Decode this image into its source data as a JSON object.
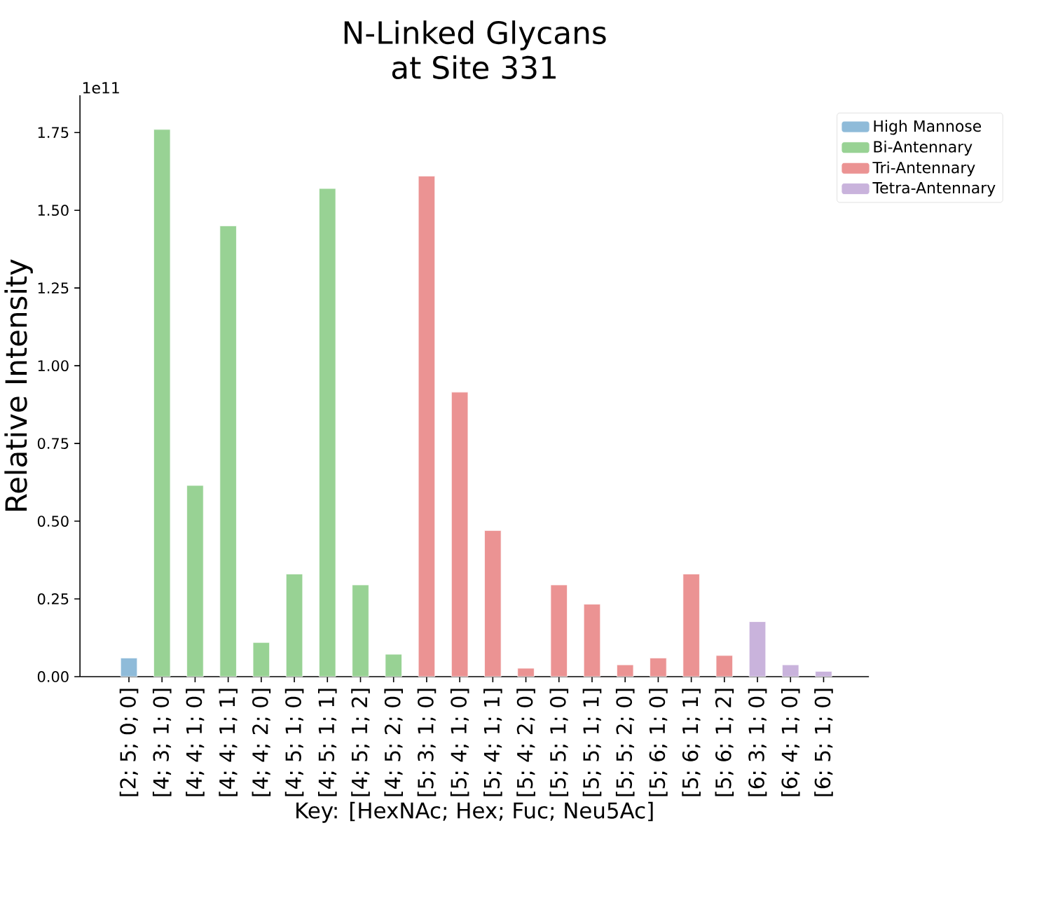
{
  "chart_data": {
    "type": "bar",
    "title": "N-Linked Glycans",
    "subtitle": "at Site 331",
    "xlabel": "Key: [HexNAc; Hex; Fuc; Neu5Ac]",
    "ylabel": "Relative Intensity",
    "annotations": [
      "1e11"
    ],
    "categories": [
      "[2; 5; 0; 0]",
      "[4; 3; 1; 0]",
      "[4; 4; 1; 0]",
      "[4; 4; 1; 1]",
      "[4; 4; 2; 0]",
      "[4; 5; 1; 0]",
      "[4; 5; 1; 1]",
      "[4; 5; 1; 2]",
      "[4; 5; 2; 0]",
      "[5; 3; 1; 0]",
      "[5; 4; 1; 0]",
      "[5; 4; 1; 1]",
      "[5; 4; 2; 0]",
      "[5; 5; 1; 0]",
      "[5; 5; 1; 1]",
      "[5; 5; 2; 0]",
      "[5; 6; 1; 0]",
      "[5; 6; 1; 1]",
      "[5; 6; 1; 2]",
      "[6; 3; 1; 0]",
      "[6; 4; 1; 0]",
      "[6; 5; 1; 0]"
    ],
    "series": [
      {
        "name": "High Mannose",
        "color": "#8fbbd9",
        "values": [
          0.06,
          null,
          null,
          null,
          null,
          null,
          null,
          null,
          null,
          null,
          null,
          null,
          null,
          null,
          null,
          null,
          null,
          null,
          null,
          null,
          null,
          null
        ]
      },
      {
        "name": "Bi-Antennary",
        "color": "#98d294",
        "values": [
          null,
          1.76,
          0.615,
          1.45,
          0.11,
          0.33,
          1.57,
          0.295,
          0.072,
          null,
          null,
          null,
          null,
          null,
          null,
          null,
          null,
          null,
          null,
          null,
          null,
          null
        ]
      },
      {
        "name": "Tri-Antennary",
        "color": "#eb9393",
        "values": [
          null,
          null,
          null,
          null,
          null,
          null,
          null,
          null,
          null,
          1.61,
          0.915,
          0.47,
          0.027,
          0.295,
          0.233,
          0.038,
          0.06,
          0.33,
          0.068,
          null,
          null,
          null
        ]
      },
      {
        "name": "Tetra-Antennary",
        "color": "#c9b3dc",
        "values": [
          null,
          null,
          null,
          null,
          null,
          null,
          null,
          null,
          null,
          null,
          null,
          null,
          null,
          null,
          null,
          null,
          null,
          null,
          null,
          0.177,
          0.038,
          0.017
        ]
      }
    ],
    "ylim": [
      0,
      1.87
    ],
    "yticks": [
      {
        "value": 0,
        "label": "0.00"
      },
      {
        "value": 0.25,
        "label": "0.25"
      },
      {
        "value": 0.5,
        "label": "0.50"
      },
      {
        "value": 0.75,
        "label": "0.75"
      },
      {
        "value": 1,
        "label": "1.00"
      },
      {
        "value": 1.25,
        "label": "1.25"
      },
      {
        "value": 1.5,
        "label": "1.50"
      },
      {
        "value": 1.75,
        "label": "1.75"
      }
    ],
    "legend": "top right"
  }
}
